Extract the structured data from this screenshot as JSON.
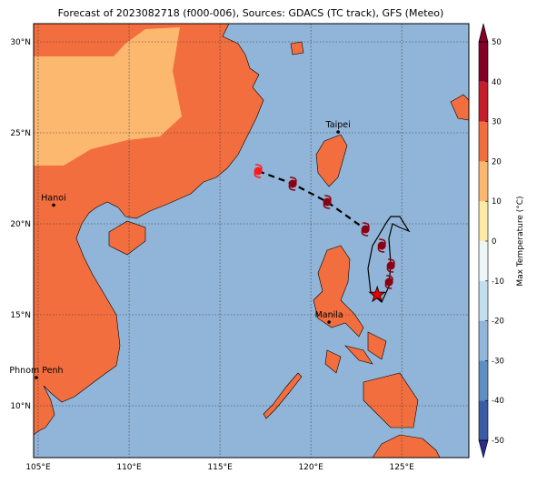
{
  "title": "Forecast of 2023082718 (f000-006), Sources: GDACS (TC track), GFS (Meteo)",
  "map": {
    "lonlim": [
      104.75,
      128.69
    ],
    "latlim": [
      7.15,
      31.0
    ],
    "lon_ticks": [
      {
        "value": 105,
        "label": "105°E"
      },
      {
        "value": 110,
        "label": "110°E"
      },
      {
        "value": 115,
        "label": "115°E"
      },
      {
        "value": 120,
        "label": "120°E"
      },
      {
        "value": 125,
        "label": "125°E"
      }
    ],
    "lat_ticks": [
      {
        "value": 10,
        "label": "10°N"
      },
      {
        "value": 15,
        "label": "15°N"
      },
      {
        "value": 20,
        "label": "20°N"
      },
      {
        "value": 25,
        "label": "25°N"
      },
      {
        "value": 30,
        "label": "30°N"
      }
    ],
    "cities": [
      {
        "name": "Taipei",
        "lon": 121.5,
        "lat": 25.05
      },
      {
        "name": "Hanoi",
        "lon": 105.85,
        "lat": 21.03
      },
      {
        "name": "Manila",
        "lon": 121.0,
        "lat": 14.6
      },
      {
        "name": "Phnom Penh",
        "lon": 104.9,
        "lat": 11.55
      }
    ],
    "track": [
      {
        "lon": 117.1,
        "lat": 22.9,
        "color": "#ff1a1a"
      },
      {
        "lon": 119.0,
        "lat": 22.2,
        "color": "#8b0010"
      },
      {
        "lon": 120.9,
        "lat": 21.2,
        "color": "#8b0010"
      },
      {
        "lon": 123.0,
        "lat": 19.7,
        "color": "#8b0010"
      },
      {
        "lon": 123.9,
        "lat": 18.8,
        "color": "#8b0010"
      },
      {
        "lon": 124.4,
        "lat": 17.7,
        "color": "#8b0010"
      },
      {
        "lon": 124.3,
        "lat": 16.8,
        "color": "#8b0010"
      }
    ],
    "current": {
      "lon": 123.65,
      "lat": 16.1
    }
  },
  "colorbar": {
    "label": "Max Temperature (°C)",
    "lim": [
      -50,
      50
    ],
    "ticks": [
      -50,
      -40,
      -30,
      -20,
      -10,
      0,
      10,
      20,
      30,
      40,
      50
    ],
    "colors": [
      "#2b2c8c",
      "#3a5ca6",
      "#5e8fc2",
      "#91b6da",
      "#c3deec",
      "#eef7f6",
      "#fdeaa4",
      "#fdb870",
      "#f26e3f",
      "#c61d2b",
      "#850027"
    ]
  }
}
